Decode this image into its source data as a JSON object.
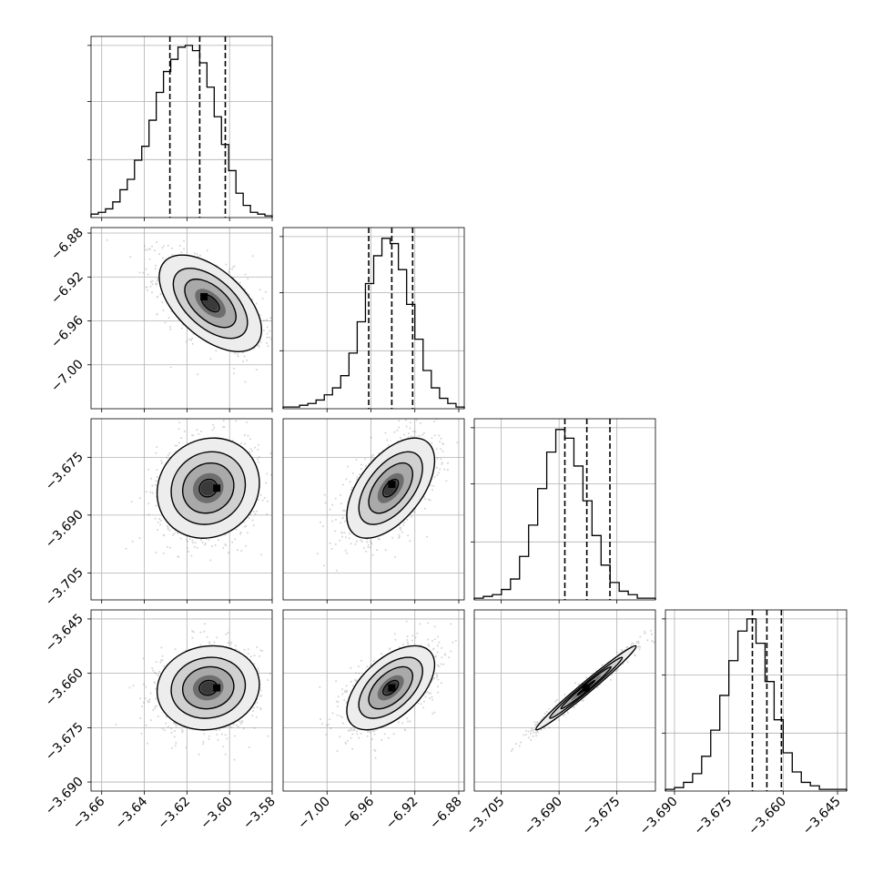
{
  "chart_data": {
    "type": "corner",
    "title": "",
    "grid": true,
    "parameters": [
      {
        "range": [
          -3.665,
          -3.58
        ],
        "ticks": [
          -3.66,
          -3.64,
          -3.62,
          -3.6,
          -3.58
        ],
        "tick_labels": [
          "−3.66",
          "−3.64",
          "−3.62",
          "−3.60",
          "−3.58"
        ],
        "quantiles": [
          -3.628,
          -3.614,
          -3.602
        ],
        "hist": [
          0.02,
          0.03,
          0.05,
          0.09,
          0.16,
          0.22,
          0.33,
          0.41,
          0.56,
          0.72,
          0.84,
          0.91,
          0.98,
          0.99,
          0.96,
          0.89,
          0.75,
          0.58,
          0.42,
          0.27,
          0.14,
          0.07,
          0.03,
          0.02,
          0.01
        ]
      },
      {
        "range": [
          -7.04,
          -6.875
        ],
        "ticks": [
          -7.0,
          -6.96,
          -6.92,
          -6.88
        ],
        "tick_labels": [
          "−7.00",
          "−6.96",
          "−6.92",
          "−6.88"
        ],
        "quantiles": [
          -6.962,
          -6.941,
          -6.922
        ],
        "hist": [
          0.01,
          0.01,
          0.02,
          0.03,
          0.05,
          0.08,
          0.12,
          0.19,
          0.32,
          0.5,
          0.72,
          0.88,
          0.98,
          0.95,
          0.8,
          0.6,
          0.4,
          0.22,
          0.12,
          0.06,
          0.03,
          0.01
        ]
      },
      {
        "range": [
          -3.712,
          -3.665
        ],
        "ticks": [
          -3.705,
          -3.69,
          -3.675
        ],
        "tick_labels": [
          "−3.705",
          "−3.690",
          "−3.675"
        ],
        "quantiles": [
          -3.6885,
          -3.6828,
          -3.6768
        ],
        "hist": [
          0.01,
          0.02,
          0.03,
          0.06,
          0.12,
          0.25,
          0.43,
          0.64,
          0.85,
          0.98,
          0.93,
          0.77,
          0.57,
          0.37,
          0.2,
          0.1,
          0.05,
          0.03,
          0.01,
          0.01
        ]
      },
      {
        "range": [
          -3.6925,
          -3.6425
        ],
        "ticks": [
          -3.69,
          -3.675,
          -3.66,
          -3.645
        ],
        "tick_labels": [
          "−3.690",
          "−3.675",
          "−3.660",
          "−3.645"
        ],
        "quantiles": [
          -3.6685,
          -3.6645,
          -3.6605
        ],
        "hist": [
          0.01,
          0.02,
          0.05,
          0.1,
          0.2,
          0.35,
          0.55,
          0.75,
          0.92,
          0.99,
          0.85,
          0.63,
          0.41,
          0.22,
          0.11,
          0.05,
          0.03,
          0.01,
          0.01,
          0.01
        ]
      }
    ],
    "joint": [
      {
        "x": 0,
        "y": 1,
        "center": [
          -3.609,
          -6.944
        ],
        "sigma": [
          0.012,
          0.022
        ],
        "rho": -0.55,
        "peak": [
          -3.612,
          -6.938
        ]
      },
      {
        "x": 0,
        "y": 2,
        "center": [
          -3.61,
          -3.683
        ],
        "sigma": [
          0.012,
          0.0065
        ],
        "rho": 0.1,
        "peak": [
          -3.606,
          -3.683
        ]
      },
      {
        "x": 1,
        "y": 2,
        "center": [
          -6.942,
          -3.683
        ],
        "sigma": [
          0.02,
          0.0065
        ],
        "rho": 0.55,
        "peak": [
          -6.941,
          -3.682
        ]
      },
      {
        "x": 0,
        "y": 3,
        "center": [
          -3.61,
          -3.664
        ],
        "sigma": [
          0.012,
          0.0058
        ],
        "rho": 0.08,
        "peak": [
          -3.606,
          -3.664
        ]
      },
      {
        "x": 1,
        "y": 3,
        "center": [
          -6.942,
          -3.664
        ],
        "sigma": [
          0.02,
          0.0058
        ],
        "rho": 0.55,
        "peak": [
          -6.941,
          -3.664
        ]
      },
      {
        "x": 2,
        "y": 3,
        "center": [
          -3.683,
          -3.664
        ],
        "sigma": [
          0.0065,
          0.0058
        ],
        "rho": 0.985,
        "peak": [
          -3.683,
          -3.664
        ]
      }
    ]
  }
}
